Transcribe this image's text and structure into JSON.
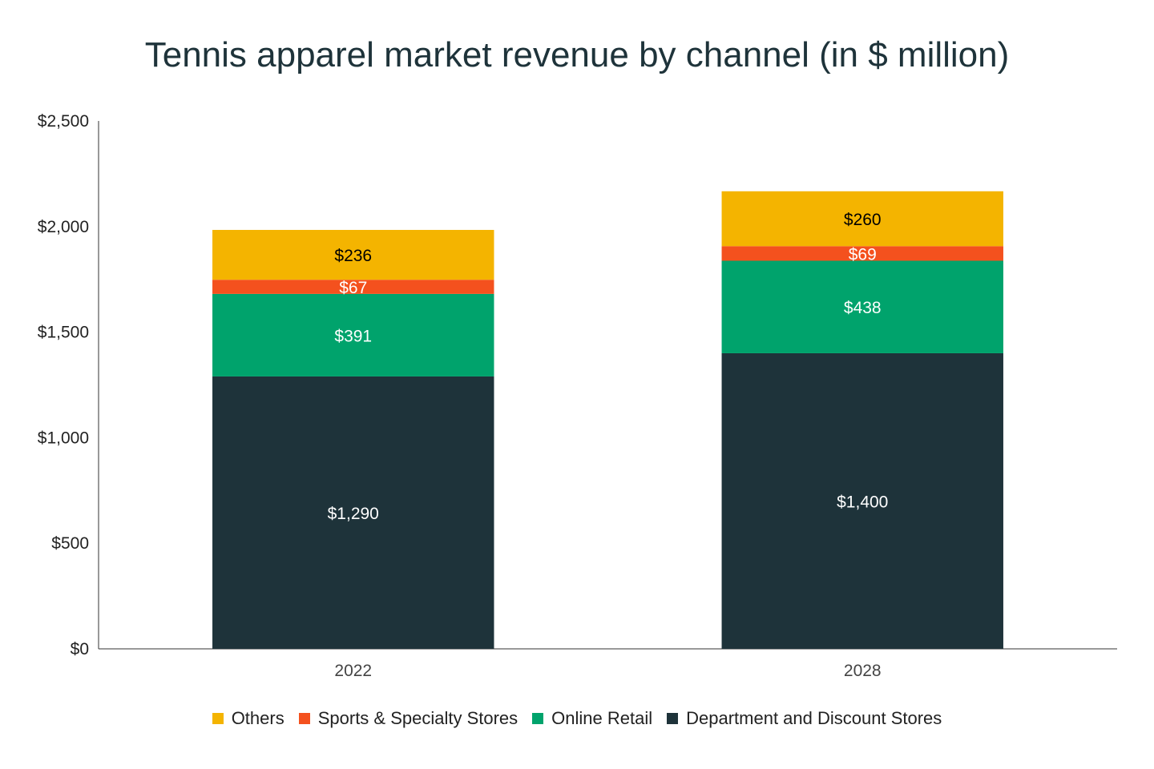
{
  "chart_data": {
    "type": "bar",
    "stacked": true,
    "title": "Tennis apparel market revenue by channel (in $ million)",
    "categories": [
      "2022",
      "2028"
    ],
    "series": [
      {
        "name": "Department and Discount Stores",
        "values": [
          1290,
          1400
        ],
        "labels": [
          "$1,290",
          "$1,400"
        ],
        "color": "#1e333a",
        "label_color": "#ffffff"
      },
      {
        "name": "Online Retail",
        "values": [
          391,
          438
        ],
        "labels": [
          "$391",
          "$438"
        ],
        "color": "#00a36c",
        "label_color": "#ffffff"
      },
      {
        "name": "Sports & Specialty Stores",
        "values": [
          67,
          69
        ],
        "labels": [
          "$67",
          "$69"
        ],
        "color": "#f4511e",
        "label_color": "#ffffff"
      },
      {
        "name": "Others",
        "values": [
          236,
          260
        ],
        "labels": [
          "$236",
          "$260"
        ],
        "color": "#f4b400",
        "label_color": "#000000"
      }
    ],
    "legend_order": [
      "Others",
      "Sports & Specialty Stores",
      "Online Retail",
      "Department and Discount Stores"
    ],
    "legend_position": "bottom",
    "ylim": [
      0,
      2500
    ],
    "yticks": [
      0,
      500,
      1000,
      1500,
      2000,
      2500
    ],
    "ytick_labels": [
      "$0",
      "$500",
      "$1,000",
      "$1,500",
      "$2,000",
      "$2,500"
    ],
    "grid": false
  }
}
